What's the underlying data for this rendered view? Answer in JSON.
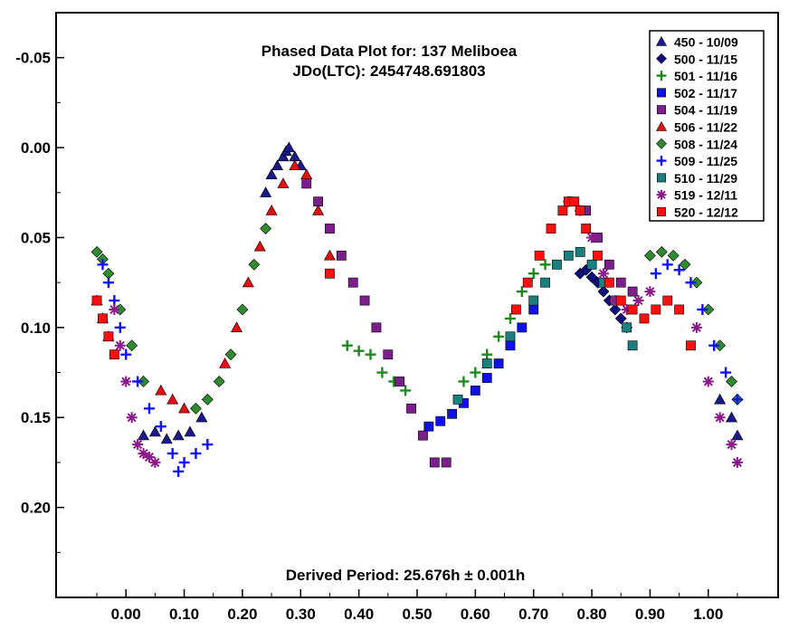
{
  "chart_data": {
    "type": "scatter",
    "title": "Phased Data Plot for: 137 Meliboea",
    "subtitle": "JDo(LTC): 2454748.691803",
    "footer": "Derived Period: 25.676h ± 0.001h",
    "xlabel": "",
    "ylabel": "",
    "xlim": [
      -0.12,
      1.12
    ],
    "ylim": [
      0.25,
      -0.075
    ],
    "y_inverted": true,
    "grid": false,
    "legend_position": "top-right",
    "x_ticks": [
      "0.00",
      "0.10",
      "0.20",
      "0.30",
      "0.40",
      "0.50",
      "0.60",
      "0.70",
      "0.80",
      "0.90",
      "1.00"
    ],
    "y_ticks": [
      "-0.05",
      "0.00",
      "0.05",
      "0.10",
      "0.15",
      "0.20"
    ],
    "series": [
      {
        "name": "450 - 10/09",
        "marker": "triangle",
        "color": "#1a1a8c",
        "x": [
          0.03,
          0.05,
          0.07,
          0.09,
          0.11,
          0.13,
          0.24,
          0.25,
          0.26,
          0.27,
          0.275,
          0.28,
          0.29,
          0.3,
          1.02,
          1.04,
          1.05
        ],
        "y": [
          0.16,
          0.158,
          0.162,
          0.16,
          0.158,
          0.15,
          0.025,
          0.015,
          0.01,
          0.005,
          0.002,
          0.0,
          0.005,
          0.01,
          0.14,
          0.15,
          0.16
        ]
      },
      {
        "name": "500 - 11/15",
        "marker": "diamond",
        "color": "#0d0d80",
        "x": [
          0.78,
          0.79,
          0.8,
          0.81,
          0.82,
          0.83,
          0.84,
          0.85,
          0.86
        ],
        "y": [
          0.07,
          0.068,
          0.072,
          0.075,
          0.08,
          0.085,
          0.09,
          0.095,
          0.1
        ]
      },
      {
        "name": "501 - 11/16",
        "marker": "plus",
        "color": "#1b8a1b",
        "x": [
          0.38,
          0.4,
          0.42,
          0.44,
          0.46,
          0.48,
          0.58,
          0.6,
          0.62,
          0.64,
          0.66,
          0.68,
          0.7,
          0.72
        ],
        "y": [
          0.11,
          0.113,
          0.115,
          0.125,
          0.13,
          0.135,
          0.13,
          0.125,
          0.115,
          0.105,
          0.095,
          0.08,
          0.07,
          0.065
        ]
      },
      {
        "name": "502 - 11/17",
        "marker": "square",
        "color": "#1010e8",
        "x": [
          0.52,
          0.54,
          0.56,
          0.58,
          0.6,
          0.62,
          0.64,
          0.66,
          0.68,
          0.7
        ],
        "y": [
          0.155,
          0.152,
          0.148,
          0.142,
          0.135,
          0.128,
          0.12,
          0.11,
          0.1,
          0.09
        ]
      },
      {
        "name": "504 - 11/19",
        "marker": "square",
        "color": "#7a1f8c",
        "x": [
          0.31,
          0.33,
          0.35,
          0.37,
          0.39,
          0.41,
          0.43,
          0.45,
          0.47,
          0.49,
          0.51,
          0.53,
          0.55,
          0.79,
          0.81,
          0.83,
          0.85,
          0.87
        ],
        "y": [
          0.02,
          0.03,
          0.045,
          0.06,
          0.075,
          0.085,
          0.1,
          0.115,
          0.13,
          0.145,
          0.16,
          0.175,
          0.175,
          0.035,
          0.05,
          0.065,
          0.075,
          0.08
        ]
      },
      {
        "name": "506 - 11/22",
        "marker": "triangle",
        "color": "#e01010",
        "x": [
          -0.05,
          -0.04,
          -0.03,
          0.06,
          0.08,
          0.1,
          0.17,
          0.19,
          0.21,
          0.23,
          0.25,
          0.27,
          0.29,
          0.31,
          0.33,
          0.35
        ],
        "y": [
          0.085,
          0.095,
          0.105,
          0.135,
          0.14,
          0.145,
          0.12,
          0.1,
          0.075,
          0.055,
          0.035,
          0.02,
          0.01,
          0.015,
          0.035,
          0.06
        ]
      },
      {
        "name": "508 - 11/24",
        "marker": "diamond",
        "color": "#2e8b2e",
        "x": [
          -0.05,
          -0.04,
          -0.03,
          -0.01,
          0.01,
          0.03,
          0.12,
          0.14,
          0.16,
          0.18,
          0.2,
          0.22,
          0.24,
          0.9,
          0.92,
          0.94,
          0.96,
          0.98,
          1.0,
          1.02,
          1.04,
          1.05
        ],
        "y": [
          0.058,
          0.062,
          0.07,
          0.09,
          0.11,
          0.13,
          0.145,
          0.14,
          0.13,
          0.115,
          0.09,
          0.065,
          0.045,
          0.06,
          0.058,
          0.06,
          0.065,
          0.075,
          0.09,
          0.11,
          0.13,
          0.14
        ]
      },
      {
        "name": "509 - 11/25",
        "marker": "plus",
        "color": "#1010ff",
        "x": [
          -0.04,
          -0.03,
          -0.02,
          -0.01,
          0.0,
          0.02,
          0.04,
          0.06,
          0.08,
          0.09,
          0.1,
          0.12,
          0.14,
          0.91,
          0.93,
          0.95,
          0.97,
          0.99,
          1.01,
          1.03,
          1.05
        ],
        "y": [
          0.065,
          0.075,
          0.085,
          0.1,
          0.115,
          0.13,
          0.145,
          0.155,
          0.17,
          0.18,
          0.175,
          0.17,
          0.165,
          0.07,
          0.065,
          0.068,
          0.075,
          0.09,
          0.11,
          0.125,
          0.14
        ]
      },
      {
        "name": "510 - 11/29",
        "marker": "square",
        "color": "#1a7f7f",
        "x": [
          0.57,
          0.62,
          0.66,
          0.7,
          0.72,
          0.74,
          0.76,
          0.78,
          0.8,
          0.82,
          0.84,
          0.86,
          0.87
        ],
        "y": [
          0.14,
          0.12,
          0.105,
          0.085,
          0.075,
          0.065,
          0.06,
          0.058,
          0.065,
          0.075,
          0.085,
          0.1,
          0.11
        ]
      },
      {
        "name": "519 - 12/11",
        "marker": "asterisk",
        "color": "#8b1a8b",
        "x": [
          -0.02,
          -0.01,
          0.0,
          0.01,
          0.02,
          0.03,
          0.04,
          0.05,
          0.76,
          0.78,
          0.8,
          0.82,
          0.84,
          0.86,
          0.88,
          0.9,
          0.98,
          1.0,
          1.02,
          1.04,
          1.05
        ],
        "y": [
          0.09,
          0.11,
          0.13,
          0.15,
          0.165,
          0.17,
          0.172,
          0.175,
          0.03,
          0.035,
          0.05,
          0.07,
          0.085,
          0.09,
          0.085,
          0.08,
          0.1,
          0.13,
          0.15,
          0.165,
          0.175
        ]
      },
      {
        "name": "520 - 12/12",
        "marker": "square",
        "color": "#ff1010",
        "x": [
          -0.05,
          -0.04,
          -0.03,
          -0.02,
          0.35,
          0.67,
          0.69,
          0.71,
          0.73,
          0.75,
          0.76,
          0.77,
          0.78,
          0.79,
          0.81,
          0.83,
          0.85,
          0.87,
          0.89,
          0.91,
          0.93,
          0.95,
          0.97
        ],
        "y": [
          0.085,
          0.095,
          0.105,
          0.115,
          0.07,
          0.09,
          0.075,
          0.06,
          0.045,
          0.035,
          0.03,
          0.03,
          0.035,
          0.045,
          0.06,
          0.075,
          0.085,
          0.09,
          0.095,
          0.09,
          0.085,
          0.09,
          0.11
        ]
      }
    ]
  }
}
